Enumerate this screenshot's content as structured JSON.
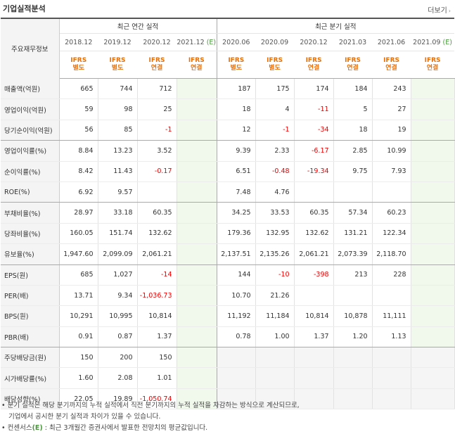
{
  "header": {
    "title": "기업실적분석",
    "more": "더보기",
    "more_icon": "›"
  },
  "table": {
    "label_header": "주요재무정보",
    "group_annual": "최근 연간 실적",
    "group_quarter": "최근 분기 실적",
    "annual_periods": [
      "2018.12",
      "2019.12",
      "2020.12",
      "2021.12"
    ],
    "quarter_periods": [
      "2020.06",
      "2020.09",
      "2020.12",
      "2021.03",
      "2021.06",
      "2021.09"
    ],
    "estimate_mark": "(E)",
    "annual_ifrs": [
      "IFRS",
      "IFRS",
      "IFRS",
      "IFRS"
    ],
    "annual_basis": [
      "별도",
      "별도",
      "연결",
      "연결"
    ],
    "quarter_ifrs": [
      "IFRS",
      "IFRS",
      "IFRS",
      "IFRS",
      "IFRS",
      "IFRS"
    ],
    "quarter_basis": [
      "별도",
      "별도",
      "연결",
      "연결",
      "연결",
      "연결"
    ],
    "rows": [
      {
        "label": "매출액(억원)",
        "annual": [
          "665",
          "744",
          "712",
          ""
        ],
        "quarter": [
          "187",
          "175",
          "174",
          "184",
          "243",
          ""
        ]
      },
      {
        "label": "영업이익(억원)",
        "annual": [
          "59",
          "98",
          "25",
          ""
        ],
        "quarter": [
          "18",
          "4",
          "-11",
          "5",
          "27",
          ""
        ]
      },
      {
        "label": "당기순이익(억원)",
        "annual": [
          "56",
          "85",
          "-1",
          ""
        ],
        "quarter": [
          "12",
          "-1",
          "-34",
          "18",
          "19",
          ""
        ]
      },
      {
        "label": "영업이익률(%)",
        "annual": [
          "8.84",
          "13.23",
          "3.52",
          ""
        ],
        "quarter": [
          "9.39",
          "2.33",
          "-6.17",
          "2.85",
          "10.99",
          ""
        ]
      },
      {
        "label": "순이익률(%)",
        "annual": [
          "8.42",
          "11.43",
          "-0.17",
          ""
        ],
        "quarter": [
          "6.51",
          "-0.48",
          "-19.34",
          "9.75",
          "7.93",
          ""
        ]
      },
      {
        "label": "ROE(%)",
        "annual": [
          "6.92",
          "9.57",
          "",
          ""
        ],
        "quarter": [
          "7.48",
          "4.76",
          "",
          "",
          "",
          ""
        ]
      },
      {
        "label": "부채비율(%)",
        "annual": [
          "28.97",
          "33.18",
          "60.35",
          ""
        ],
        "quarter": [
          "34.25",
          "33.53",
          "60.35",
          "57.34",
          "60.23",
          ""
        ]
      },
      {
        "label": "당좌비율(%)",
        "annual": [
          "160.05",
          "151.74",
          "132.62",
          ""
        ],
        "quarter": [
          "179.36",
          "132.95",
          "132.62",
          "131.21",
          "122.34",
          ""
        ]
      },
      {
        "label": "유보율(%)",
        "annual": [
          "1,947.60",
          "2,099.09",
          "2,061.21",
          ""
        ],
        "quarter": [
          "2,137.51",
          "2,135.26",
          "2,061.21",
          "2,073.39",
          "2,118.70",
          ""
        ]
      },
      {
        "label": "EPS(원)",
        "annual": [
          "685",
          "1,027",
          "-14",
          ""
        ],
        "quarter": [
          "144",
          "-10",
          "-398",
          "213",
          "228",
          ""
        ]
      },
      {
        "label": "PER(배)",
        "annual": [
          "13.71",
          "9.34",
          "-1,036.73",
          ""
        ],
        "quarter": [
          "10.70",
          "21.26",
          "",
          "",
          "",
          ""
        ]
      },
      {
        "label": "BPS(원)",
        "annual": [
          "10,291",
          "10,995",
          "10,814",
          ""
        ],
        "quarter": [
          "11,192",
          "11,184",
          "10,814",
          "10,878",
          "11,111",
          ""
        ]
      },
      {
        "label": "PBR(배)",
        "annual": [
          "0.91",
          "0.87",
          "1.37",
          ""
        ],
        "quarter": [
          "0.78",
          "1.00",
          "1.37",
          "1.20",
          "1.13",
          ""
        ]
      },
      {
        "label": "주당배당금(원)",
        "annual": [
          "150",
          "200",
          "150",
          ""
        ],
        "quarter": [
          "",
          "",
          "",
          "",
          "",
          ""
        ],
        "quarter_na": true
      },
      {
        "label": "시가배당률(%)",
        "annual": [
          "1.60",
          "2.08",
          "1.01",
          ""
        ],
        "quarter": [
          "",
          "",
          "",
          "",
          "",
          ""
        ],
        "quarter_na": true
      },
      {
        "label": "배당성향(%)",
        "annual": [
          "22.05",
          "19.89",
          "-1,050.74",
          ""
        ],
        "quarter": [
          "",
          "",
          "",
          "",
          "",
          ""
        ],
        "quarter_na": true
      }
    ],
    "group_ends": [
      2,
      5,
      8,
      12
    ]
  },
  "notes": {
    "line1": "• 분기 실적은 해당 분기까지의 누적 실적에서 직전 분기까지의 누적 실적을 차감하는 방식으로 계산되므로,",
    "line2": "기업에서 공시한 분기 실적과 차이가 있을 수 있습니다.",
    "line3_prefix": "• 컨센서스",
    "line3_mark": "(E)",
    "line3_suffix": " : 최근 3개월간 증권사에서 발표한 전망치의 평균값입니다."
  },
  "colors": {
    "ifrs": "#e8700a",
    "estimate": "#4a9a3c",
    "negative": "#e00000"
  }
}
